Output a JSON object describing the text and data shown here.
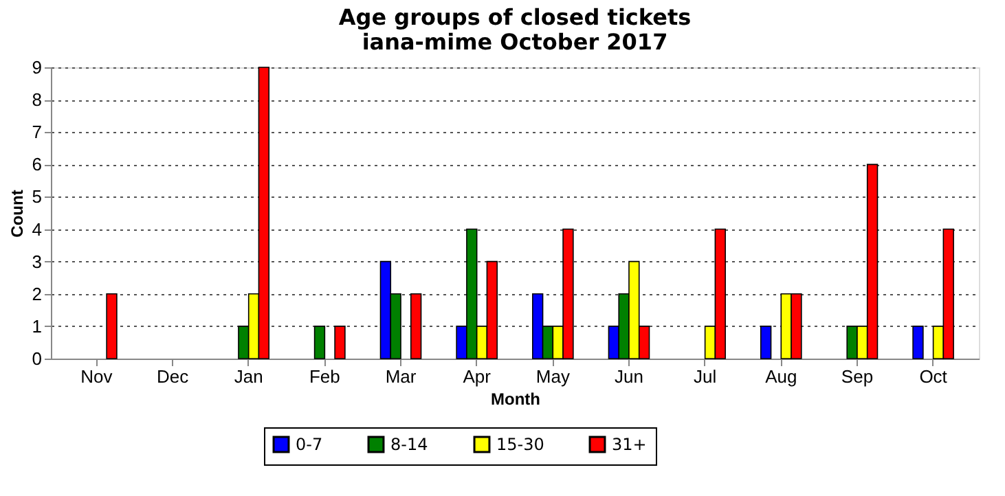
{
  "chart_data": {
    "type": "bar",
    "title": "Age groups of closed tickets",
    "subtitle": "iana-mime October 2017",
    "xlabel": "Month",
    "ylabel": "Count",
    "categories": [
      "Nov",
      "Dec",
      "Jan",
      "Feb",
      "Mar",
      "Apr",
      "May",
      "Jun",
      "Jul",
      "Aug",
      "Sep",
      "Oct"
    ],
    "series": [
      {
        "name": "0-7",
        "color": "#0000ff",
        "values": [
          0,
          0,
          0,
          0,
          3,
          1,
          2,
          1,
          0,
          1,
          0,
          1
        ]
      },
      {
        "name": "8-14",
        "color": "#008000",
        "values": [
          0,
          0,
          1,
          1,
          2,
          4,
          1,
          2,
          0,
          0,
          1,
          0
        ]
      },
      {
        "name": "15-30",
        "color": "#ffff00",
        "values": [
          0,
          0,
          2,
          0,
          0,
          1,
          1,
          3,
          1,
          2,
          1,
          1
        ]
      },
      {
        "name": "31+",
        "color": "#ff0000",
        "values": [
          2,
          0,
          9,
          1,
          2,
          3,
          4,
          1,
          4,
          2,
          6,
          4
        ]
      }
    ],
    "ylim": [
      0,
      9
    ],
    "yticks": [
      0,
      1,
      2,
      3,
      4,
      5,
      6,
      7,
      8,
      9
    ],
    "grid": "y",
    "legend": "bottom"
  }
}
